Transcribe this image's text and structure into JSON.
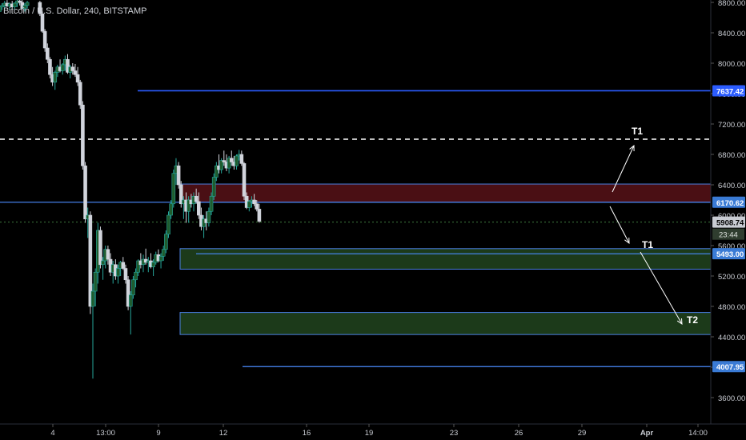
{
  "header": {
    "symbol_title": "Bitcoin / U.S. Dollar, 240, BITSTAMP"
  },
  "colors": {
    "background": "#000000",
    "up_candle": "#26a69a",
    "up_candle_dark": "#1f5c2e",
    "down_candle": "#d1d4dc",
    "blue_line": "#2b5cff",
    "light_blue_line": "#4a8cff",
    "resistance_zone": "#4a0f14",
    "support_zone": "#1c3a1a",
    "zone_border": "#4a7fe0",
    "axis_text": "#c9ccd3",
    "current_price_label": "#c9ccd3",
    "countdown_label": "#2f3d2f"
  },
  "chart_data": {
    "type": "candlestick",
    "title": "Bitcoin / U.S. Dollar, 240, BITSTAMP",
    "y_axis": {
      "ticks": [
        8800,
        8400,
        8000,
        7600,
        7200,
        6800,
        6400,
        6000,
        5600,
        5200,
        4800,
        4400,
        4000,
        3600
      ],
      "range": [
        3400,
        8800
      ]
    },
    "x_axis": {
      "ticks": [
        "4",
        "13:00",
        "9",
        "12",
        "16",
        "19",
        "23",
        "26",
        "29",
        "Apr",
        "14:00"
      ]
    },
    "levels": [
      {
        "name": "level-7637",
        "price": 7637.42,
        "label": "7637.42",
        "style": "solid-blue",
        "start_tick": 1.8
      },
      {
        "name": "level-7000",
        "price": 7000,
        "label": "",
        "style": "dashed-white",
        "start_tick": 0
      },
      {
        "name": "level-6170",
        "price": 6170.62,
        "label": "6170.62",
        "style": "solid-lightblue",
        "start_tick": 0
      },
      {
        "name": "level-5493",
        "price": 5493.0,
        "label": "5493.00",
        "style": "solid-lightblue",
        "start_tick": 3.3
      },
      {
        "name": "level-4007",
        "price": 4007.95,
        "label": "4007.95",
        "style": "solid-lightblue",
        "start_tick": 3.4
      }
    ],
    "current_price": {
      "value": 5908.74,
      "label": "5908.74",
      "countdown": "23:44"
    },
    "zones": [
      {
        "name": "resistance-zone",
        "from": 6170,
        "to": 6410,
        "type": "resistance"
      },
      {
        "name": "support-zone-1",
        "from": 5290,
        "to": 5560,
        "type": "support"
      },
      {
        "name": "support-zone-2",
        "from": 4430,
        "to": 4720,
        "type": "support"
      }
    ],
    "annotations": [
      {
        "name": "target-t1-up",
        "text": "T1",
        "price": 7150,
        "tick": 8.55
      },
      {
        "name": "target-t1-down",
        "text": "T1",
        "price": 5545,
        "tick": 8.6
      },
      {
        "name": "target-t2",
        "text": "T2",
        "price": 4440,
        "tick": 9.15
      }
    ],
    "candles": [
      [
        0.0,
        8600,
        8700,
        8550,
        8650
      ],
      [
        0.1,
        8650,
        8720,
        8600,
        8700
      ],
      [
        0.2,
        8700,
        8750,
        8650,
        8680
      ],
      [
        0.3,
        8680,
        8760,
        8640,
        8740
      ],
      [
        0.4,
        8740,
        8790,
        8700,
        8760
      ],
      [
        0.5,
        8760,
        8820,
        8720,
        8790
      ],
      [
        0.6,
        8790,
        8830,
        8740,
        8750
      ],
      [
        0.7,
        8750,
        8800,
        8700,
        8780
      ],
      [
        0.8,
        8780,
        8820,
        8720,
        8740
      ],
      [
        0.9,
        8740,
        8800,
        8700,
        8790
      ],
      [
        1.0,
        8790,
        8840,
        8740,
        8820
      ],
      [
        1.1,
        8820,
        8850,
        8760,
        8800
      ],
      [
        1.2,
        8800,
        8830,
        8700,
        8720
      ],
      [
        1.3,
        8720,
        8790,
        8680,
        8760
      ],
      [
        1.4,
        8760,
        8820,
        8720,
        8800
      ],
      [
        1.9,
        8800,
        8820,
        8620,
        8650
      ],
      [
        2.0,
        8650,
        8680,
        8400,
        8420
      ],
      [
        2.1,
        8420,
        8450,
        8150,
        8200
      ],
      [
        2.2,
        8200,
        8260,
        8000,
        8050
      ],
      [
        2.3,
        8050,
        8080,
        7800,
        7850
      ],
      [
        2.4,
        7850,
        7950,
        7700,
        7750
      ],
      [
        2.5,
        7750,
        7900,
        7650,
        7880
      ],
      [
        2.6,
        7880,
        7980,
        7820,
        7950
      ],
      [
        2.7,
        7950,
        8050,
        7880,
        7900
      ],
      [
        2.8,
        7900,
        8000,
        7850,
        7980
      ],
      [
        2.9,
        7980,
        8100,
        7900,
        8050
      ],
      [
        3.0,
        8050,
        8120,
        7860,
        7880
      ],
      [
        3.1,
        7880,
        7980,
        7800,
        7950
      ],
      [
        3.2,
        7950,
        8000,
        7850,
        7900
      ],
      [
        3.3,
        7900,
        7990,
        7820,
        7850
      ],
      [
        3.4,
        7850,
        7950,
        7700,
        7750
      ],
      [
        3.5,
        7750,
        7780,
        7400,
        7450
      ],
      [
        3.6,
        7450,
        7500,
        6600,
        6650
      ],
      [
        3.7,
        6650,
        6700,
        5900,
        5950
      ],
      [
        3.8,
        5950,
        6100,
        5700,
        6000
      ],
      [
        3.9,
        6000,
        6050,
        4700,
        4800
      ],
      [
        4.0,
        4800,
        5100,
        3850,
        5000
      ],
      [
        4.1,
        5000,
        5300,
        4800,
        5250
      ],
      [
        4.2,
        5250,
        5900,
        5100,
        5800
      ],
      [
        4.3,
        5800,
        5850,
        5300,
        5350
      ],
      [
        4.4,
        5350,
        5450,
        5150,
        5400
      ],
      [
        4.5,
        5400,
        5600,
        5300,
        5550
      ],
      [
        4.6,
        5550,
        5600,
        5350,
        5420
      ],
      [
        4.7,
        5420,
        5500,
        5200,
        5250
      ],
      [
        4.8,
        5250,
        5400,
        5100,
        5350
      ],
      [
        4.9,
        5350,
        5420,
        5150,
        5200
      ],
      [
        5.0,
        5200,
        5350,
        5100,
        5300
      ],
      [
        5.1,
        5300,
        5400,
        5200,
        5380
      ],
      [
        5.2,
        5380,
        5450,
        5280,
        5300
      ],
      [
        5.3,
        5300,
        5350,
        5100,
        5150
      ],
      [
        5.4,
        5150,
        5200,
        4750,
        4800
      ],
      [
        5.5,
        4800,
        5000,
        4430,
        4950
      ],
      [
        5.6,
        4950,
        5200,
        4900,
        5150
      ],
      [
        5.7,
        5150,
        5300,
        5050,
        5250
      ],
      [
        5.8,
        5250,
        5420,
        5200,
        5400
      ],
      [
        5.9,
        5400,
        5500,
        5300,
        5350
      ],
      [
        6.0,
        5350,
        5480,
        5250,
        5420
      ],
      [
        6.1,
        5420,
        5560,
        5350,
        5380
      ],
      [
        6.2,
        5380,
        5450,
        5250,
        5400
      ],
      [
        6.3,
        5400,
        5500,
        5300,
        5320
      ],
      [
        6.4,
        5320,
        5420,
        5200,
        5380
      ],
      [
        6.5,
        5380,
        5520,
        5350,
        5480
      ],
      [
        6.6,
        5480,
        5550,
        5380,
        5400
      ],
      [
        6.7,
        5400,
        5500,
        5300,
        5460
      ],
      [
        6.8,
        5460,
        5600,
        5400,
        5550
      ],
      [
        6.9,
        5550,
        5800,
        5500,
        5750
      ],
      [
        7.0,
        5750,
        6050,
        5700,
        6000
      ],
      [
        7.1,
        6000,
        6200,
        5950,
        6150
      ],
      [
        7.2,
        6150,
        6600,
        6100,
        6550
      ],
      [
        7.3,
        6550,
        6750,
        6400,
        6650
      ],
      [
        7.4,
        6650,
        6700,
        6350,
        6400
      ],
      [
        7.5,
        6400,
        6450,
        6100,
        6150
      ],
      [
        7.6,
        6150,
        6250,
        5950,
        6200
      ],
      [
        7.7,
        6200,
        6300,
        5900,
        6050
      ],
      [
        7.8,
        6050,
        6250,
        5900,
        6200
      ],
      [
        7.9,
        6200,
        6280,
        6100,
        6150
      ],
      [
        8.0,
        6150,
        6300,
        6050,
        6250
      ],
      [
        8.1,
        6250,
        6350,
        6150,
        6180
      ],
      [
        8.2,
        6180,
        6300,
        5950,
        6000
      ],
      [
        8.3,
        6000,
        6100,
        5800,
        5850
      ],
      [
        8.4,
        5850,
        6000,
        5700,
        5950
      ],
      [
        8.5,
        5950,
        6050,
        5800,
        5900
      ],
      [
        8.6,
        5900,
        6100,
        5850,
        6050
      ],
      [
        8.7,
        6050,
        6300,
        6000,
        6250
      ],
      [
        8.8,
        6250,
        6550,
        6200,
        6500
      ],
      [
        8.9,
        6500,
        6700,
        6450,
        6650
      ],
      [
        9.0,
        6650,
        6800,
        6550,
        6600
      ],
      [
        9.1,
        6600,
        6750,
        6550,
        6720
      ],
      [
        9.2,
        6720,
        6850,
        6650,
        6700
      ],
      [
        9.3,
        6700,
        6800,
        6580,
        6620
      ],
      [
        9.4,
        6620,
        6780,
        6550,
        6750
      ],
      [
        9.5,
        6750,
        6850,
        6650,
        6700
      ],
      [
        9.6,
        6700,
        6780,
        6600,
        6650
      ],
      [
        9.7,
        6650,
        6800,
        6600,
        6780
      ],
      [
        9.8,
        6780,
        6860,
        6720,
        6800
      ],
      [
        9.9,
        6800,
        6850,
        6650,
        6680
      ],
      [
        10.0,
        6680,
        6700,
        6200,
        6250
      ],
      [
        10.1,
        6250,
        6300,
        6080,
        6100
      ],
      [
        10.2,
        6100,
        6200,
        6050,
        6180
      ],
      [
        10.3,
        6180,
        6250,
        6100,
        6200
      ],
      [
        10.4,
        6200,
        6280,
        6120,
        6150
      ],
      [
        10.5,
        6150,
        6200,
        6050,
        6080
      ],
      [
        10.6,
        6080,
        6150,
        5900,
        5920
      ]
    ]
  }
}
